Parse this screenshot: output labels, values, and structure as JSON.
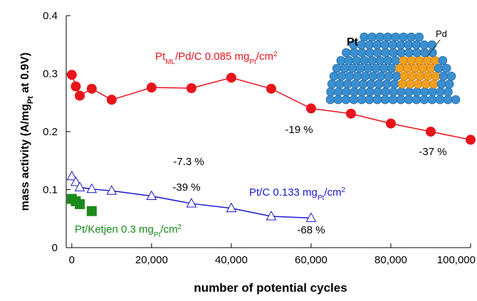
{
  "chart_data": {
    "type": "line",
    "x_label": "number of potential cycles",
    "y_label_parts": [
      "mass activity  (A/mg",
      "Pt",
      "  at 0.9V)"
    ],
    "xlim": [
      -1400,
      100000
    ],
    "xticks": [
      0,
      {
        "value": 20000,
        "label": "20,000"
      },
      {
        "value": 40000,
        "label": "40,000"
      },
      {
        "value": 60000,
        "label": "60,000"
      },
      {
        "value": 80000,
        "label": "80,000"
      },
      {
        "value": 100000,
        "label": "100,000"
      }
    ],
    "ylim": [
      0,
      0.4
    ],
    "yticks": [
      0,
      0.1,
      0.2,
      0.3,
      0.4
    ],
    "series": [
      {
        "label_parts": [
          "Pt",
          "ML",
          "/Pd/C 0.085 mg",
          "Pt",
          "/cm",
          "2"
        ],
        "color": "#e8141c",
        "marker": "circle",
        "line": true,
        "x": [
          0,
          1000,
          2000,
          5000,
          10000,
          20000,
          30000,
          40000,
          50000,
          60000,
          70000,
          80000,
          90000,
          100000
        ],
        "values": [
          0.298,
          0.278,
          0.262,
          0.274,
          0.255,
          0.276,
          0.275,
          0.293,
          0.274,
          0.24,
          0.231,
          0.214,
          0.2,
          0.186
        ]
      },
      {
        "label_parts": [
          "Pt/C 0.133 mg",
          "Pt",
          "/cm",
          "2"
        ],
        "color": "#1a1ad0",
        "marker": "open-triangle",
        "line": true,
        "x": [
          0,
          1000,
          2000,
          5000,
          10000,
          20000,
          30000,
          40000,
          50000,
          60000
        ],
        "values": [
          0.123,
          0.113,
          0.104,
          0.101,
          0.098,
          0.089,
          0.076,
          0.068,
          0.054,
          0.051
        ]
      },
      {
        "label_parts": [
          "Pt/Ketjen 0.3 mg",
          "Pt",
          "/cm",
          "2"
        ],
        "color": "#1a8a1a",
        "marker": "square",
        "line": false,
        "x": [
          0,
          1000,
          2000,
          5000
        ],
        "values": [
          0.084,
          0.08,
          0.075,
          0.063
        ]
      }
    ],
    "annotations": [
      "-7.3 %",
      "-19 %",
      "-37 %",
      "-39 %",
      "-68 %"
    ],
    "inset_labels": [
      "Pt",
      "Pd"
    ]
  }
}
